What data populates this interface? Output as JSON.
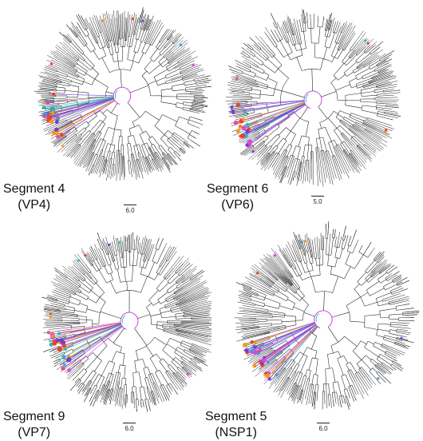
{
  "figure": {
    "panels": [
      {
        "segment_label": "Segment 4",
        "protein_label": "(VP4)",
        "scale_label": "6.0",
        "seed": 11,
        "highlight_colors": [
          "#e8432c",
          "#f39b1a",
          "#3a9be0",
          "#7a3ad6",
          "#27b0a0",
          "#d94ad6"
        ]
      },
      {
        "segment_label": "Segment 6",
        "protein_label": "(VP6)",
        "scale_label": "5.0",
        "seed": 23,
        "highlight_colors": [
          "#e8432c",
          "#f39b1a",
          "#2bb8c8",
          "#7a3ad6",
          "#d94ad6"
        ]
      },
      {
        "segment_label": "Segment 9",
        "protein_label": "(VP7)",
        "scale_label": "6.0",
        "seed": 37,
        "highlight_colors": [
          "#e8432c",
          "#f39b1a",
          "#2bb8c8",
          "#7a3ad6",
          "#d94ad6"
        ]
      },
      {
        "segment_label": "Segment 5",
        "protein_label": "(NSP1)",
        "scale_label": "6.0",
        "seed": 53,
        "highlight_colors": [
          "#e8432c",
          "#f39b1a",
          "#3a9be0",
          "#7a3ad6",
          "#d94ad6"
        ]
      }
    ]
  }
}
